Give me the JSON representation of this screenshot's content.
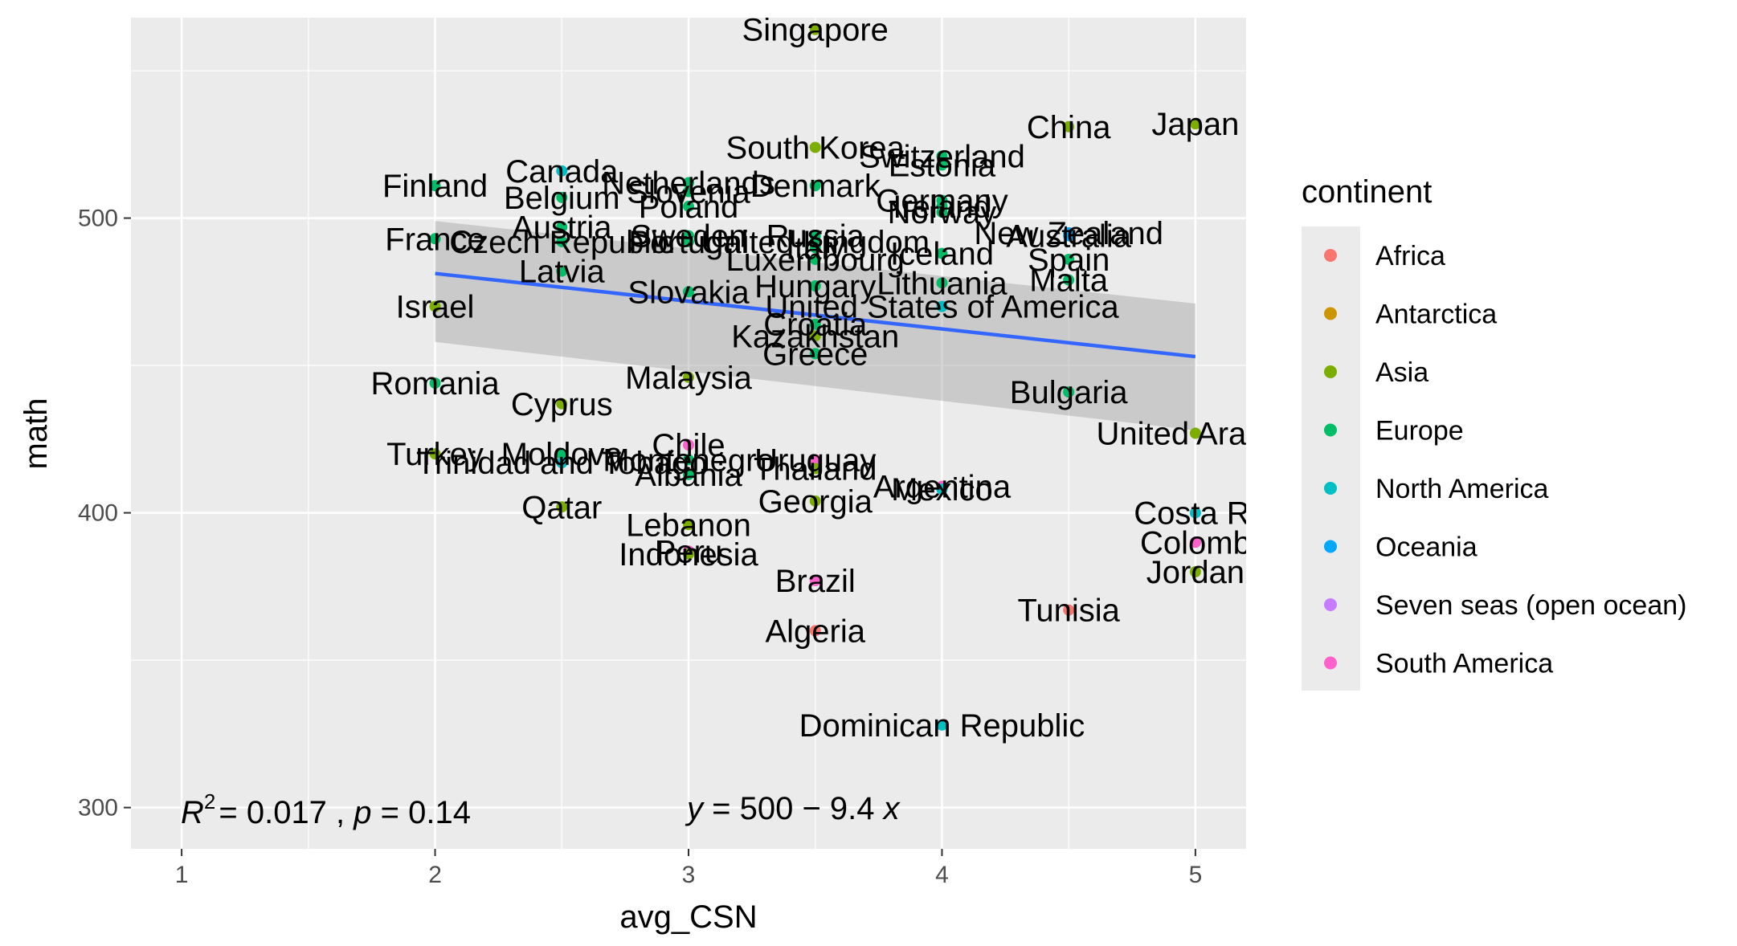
{
  "chart_data": {
    "type": "scatter",
    "xlabel": "avg_CSN",
    "ylabel": "math",
    "xlim": [
      0.8,
      5.2
    ],
    "ylim": [
      286,
      568
    ],
    "x_ticks": [
      1,
      2,
      3,
      4,
      5
    ],
    "y_ticks": [
      300,
      400,
      500
    ],
    "grid": true,
    "legend": {
      "title": "continent",
      "position": "right",
      "entries": [
        {
          "name": "Africa",
          "color": "#F8766D"
        },
        {
          "name": "Antarctica",
          "color": "#CD9600"
        },
        {
          "name": "Asia",
          "color": "#7CAE00"
        },
        {
          "name": "Europe",
          "color": "#00BE67"
        },
        {
          "name": "North America",
          "color": "#00BFC4"
        },
        {
          "name": "Oceania",
          "color": "#00A9FF"
        },
        {
          "name": "Seven seas (open ocean)",
          "color": "#C77CFF"
        },
        {
          "name": "South America",
          "color": "#FF61CC"
        }
      ]
    },
    "annotations": {
      "r2_text": "= 0.017 , ",
      "r2_prefix": "R",
      "r2_sup": "2",
      "p_prefix": "p",
      "p_text": " = 0.14",
      "eq_prefix": "y",
      "eq_text": " = 500 − 9.4 ",
      "eq_suffix": "x"
    },
    "regression": {
      "intercept": 500,
      "slope": -9.4,
      "x_range": [
        2,
        5
      ],
      "band_lower": [
        458,
        428
      ],
      "band_upper": [
        499,
        471
      ]
    },
    "points": [
      {
        "label": "Singapore",
        "x": 3.5,
        "y": 564,
        "continent": "Asia"
      },
      {
        "label": "Japan",
        "x": 5,
        "y": 532,
        "continent": "Asia"
      },
      {
        "label": "China",
        "x": 4.5,
        "y": 531,
        "continent": "Asia"
      },
      {
        "label": "South Korea",
        "x": 3.5,
        "y": 524,
        "continent": "Asia"
      },
      {
        "label": "Switzerland",
        "x": 4,
        "y": 521,
        "continent": "Europe"
      },
      {
        "label": "Estonia",
        "x": 4,
        "y": 518,
        "continent": "Europe"
      },
      {
        "label": "Canada",
        "x": 2.5,
        "y": 516,
        "continent": "North America"
      },
      {
        "label": "Finland",
        "x": 2,
        "y": 511,
        "continent": "Europe"
      },
      {
        "label": "Netherlands",
        "x": 3,
        "y": 512,
        "continent": "Europe"
      },
      {
        "label": "Denmark",
        "x": 3.5,
        "y": 511,
        "continent": "Europe"
      },
      {
        "label": "Slovenia",
        "x": 3,
        "y": 509,
        "continent": "Europe"
      },
      {
        "label": "Belgium",
        "x": 2.5,
        "y": 507,
        "continent": "Europe"
      },
      {
        "label": "Germany",
        "x": 4,
        "y": 506,
        "continent": "Europe"
      },
      {
        "label": "Poland",
        "x": 3,
        "y": 504,
        "continent": "Europe"
      },
      {
        "label": "Ireland",
        "x": 4,
        "y": 504,
        "continent": "Europe"
      },
      {
        "label": "Norway",
        "x": 4,
        "y": 502,
        "continent": "Europe"
      },
      {
        "label": "Austria",
        "x": 2.5,
        "y": 497,
        "continent": "Europe"
      },
      {
        "label": "New Zealand",
        "x": 4.5,
        "y": 495,
        "continent": "Oceania"
      },
      {
        "label": "Australia",
        "x": 4.5,
        "y": 494,
        "continent": "Oceania"
      },
      {
        "label": "France",
        "x": 2,
        "y": 493,
        "continent": "Europe"
      },
      {
        "label": "Czech Republic",
        "x": 2.5,
        "y": 492,
        "continent": "Europe"
      },
      {
        "label": "Sweden",
        "x": 3,
        "y": 494,
        "continent": "Europe"
      },
      {
        "label": "Portugal",
        "x": 3,
        "y": 492,
        "continent": "Europe"
      },
      {
        "label": "United Kingdom",
        "x": 3.5,
        "y": 492,
        "continent": "Europe"
      },
      {
        "label": "Russia",
        "x": 3.5,
        "y": 494,
        "continent": "Europe"
      },
      {
        "label": "Italy",
        "x": 3.5,
        "y": 490,
        "continent": "Europe"
      },
      {
        "label": "Iceland",
        "x": 4,
        "y": 488,
        "continent": "Europe"
      },
      {
        "label": "Spain",
        "x": 4.5,
        "y": 486,
        "continent": "Europe"
      },
      {
        "label": "Luxembourg",
        "x": 3.5,
        "y": 486,
        "continent": "Europe"
      },
      {
        "label": "Latvia",
        "x": 2.5,
        "y": 482,
        "continent": "Europe"
      },
      {
        "label": "Malta",
        "x": 4.5,
        "y": 479,
        "continent": "Europe"
      },
      {
        "label": "Lithuania",
        "x": 4,
        "y": 478,
        "continent": "Europe"
      },
      {
        "label": "Hungary",
        "x": 3.5,
        "y": 477,
        "continent": "Europe"
      },
      {
        "label": "Slovakia",
        "x": 3,
        "y": 475,
        "continent": "Europe"
      },
      {
        "label": "Israel",
        "x": 2,
        "y": 470,
        "continent": "Asia"
      },
      {
        "label": "United States of America",
        "x": 4,
        "y": 470,
        "continent": "North America"
      },
      {
        "label": "Croatia",
        "x": 3.5,
        "y": 464,
        "continent": "Europe"
      },
      {
        "label": "Kazakhstan",
        "x": 3.5,
        "y": 460,
        "continent": "Asia"
      },
      {
        "label": "Greece",
        "x": 3.5,
        "y": 454,
        "continent": "Europe"
      },
      {
        "label": "Malaysia",
        "x": 3,
        "y": 446,
        "continent": "Asia"
      },
      {
        "label": "Romania",
        "x": 2,
        "y": 444,
        "continent": "Europe"
      },
      {
        "label": "Bulgaria",
        "x": 4.5,
        "y": 441,
        "continent": "Europe"
      },
      {
        "label": "Cyprus",
        "x": 2.5,
        "y": 437,
        "continent": "Asia"
      },
      {
        "label": "United Arab E",
        "x": 5,
        "y": 427,
        "continent": "Asia"
      },
      {
        "label": "Chile",
        "x": 3,
        "y": 423,
        "continent": "South America"
      },
      {
        "label": "Turkey",
        "x": 2,
        "y": 420,
        "continent": "Asia"
      },
      {
        "label": "Moldova",
        "x": 2.5,
        "y": 420,
        "continent": "Europe"
      },
      {
        "label": "Trinidad and Tobago",
        "x": 2.5,
        "y": 417,
        "continent": "North America"
      },
      {
        "label": "Uruguay",
        "x": 3.5,
        "y": 418,
        "continent": "South America"
      },
      {
        "label": "Montenegro",
        "x": 3,
        "y": 418,
        "continent": "Europe"
      },
      {
        "label": "Thailand",
        "x": 3.5,
        "y": 415,
        "continent": "Asia"
      },
      {
        "label": "Albania",
        "x": 3,
        "y": 413,
        "continent": "Europe"
      },
      {
        "label": "Argentina",
        "x": 4,
        "y": 409,
        "continent": "South America"
      },
      {
        "label": "Mexico",
        "x": 4,
        "y": 408,
        "continent": "North America"
      },
      {
        "label": "Georgia",
        "x": 3.5,
        "y": 404,
        "continent": "Asia"
      },
      {
        "label": "Qatar",
        "x": 2.5,
        "y": 402,
        "continent": "Asia"
      },
      {
        "label": "Costa Ri",
        "x": 5,
        "y": 400,
        "continent": "North America"
      },
      {
        "label": "Lebanon",
        "x": 3,
        "y": 396,
        "continent": "Asia"
      },
      {
        "label": "Colomb",
        "x": 5,
        "y": 390,
        "continent": "South America"
      },
      {
        "label": "Peru",
        "x": 3,
        "y": 387,
        "continent": "South America"
      },
      {
        "label": "Indonesia",
        "x": 3,
        "y": 386,
        "continent": "Asia"
      },
      {
        "label": "Jordan",
        "x": 5,
        "y": 380,
        "continent": "Asia"
      },
      {
        "label": "Brazil",
        "x": 3.5,
        "y": 377,
        "continent": "South America"
      },
      {
        "label": "Tunisia",
        "x": 4.5,
        "y": 367,
        "continent": "Africa"
      },
      {
        "label": "Algeria",
        "x": 3.5,
        "y": 360,
        "continent": "Africa"
      },
      {
        "label": "Dominican Republic",
        "x": 4,
        "y": 328,
        "continent": "North America"
      }
    ]
  }
}
